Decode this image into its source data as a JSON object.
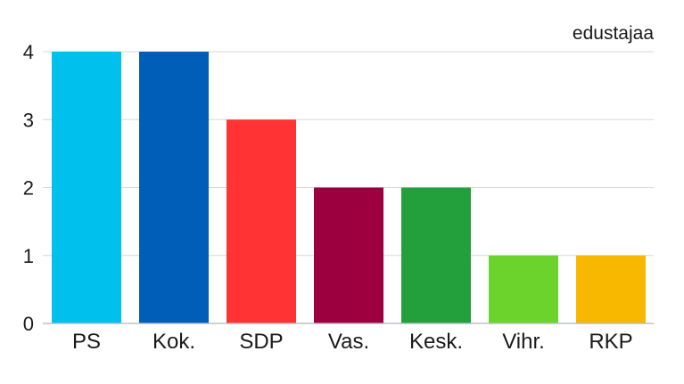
{
  "chart_data": {
    "type": "bar",
    "title": "",
    "xlabel": "",
    "ylabel": "",
    "unit_label": "edustajaa",
    "categories": [
      "PS",
      "Kok.",
      "SDP",
      "Vas.",
      "Kesk.",
      "Vihr.",
      "RKP"
    ],
    "values": [
      4,
      4,
      3,
      2,
      2,
      1,
      1
    ],
    "colors": [
      "#00c1ee",
      "#005eb8",
      "#ff3333",
      "#9c003f",
      "#23a03c",
      "#6cd22c",
      "#f8b800"
    ],
    "ylim": [
      0,
      4
    ],
    "yticks": [
      "0",
      "1",
      "2",
      "3",
      "4"
    ],
    "grid": true,
    "legend": "none"
  }
}
